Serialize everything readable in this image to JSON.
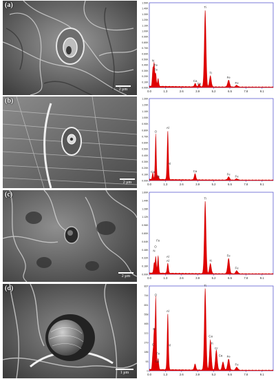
{
  "panels": [
    {
      "label": "(a)",
      "scalebar": "2 μm",
      "chart_data": {
        "type": "line",
        "x_ticks": [
          "0.0",
          "1.3",
          "2.6",
          "3.9",
          "5.2",
          "6.5",
          "7.8",
          "9.1"
        ],
        "y_ticks": [
          "0.00K",
          "0.10K",
          "0.20K",
          "0.30K",
          "0.40K",
          "0.50K",
          "0.60K",
          "0.70K",
          "0.80K",
          "0.90K",
          "1.00K",
          "1.10K",
          "1.20K",
          "1.30K",
          "1.40K",
          "1.50K"
        ],
        "xlim": [
          0,
          10
        ],
        "ylim": [
          0,
          1.5
        ],
        "peaks": [
          {
            "x": 0.28,
            "y": 0.3
          },
          {
            "x": 0.39,
            "y": 0.4
          },
          {
            "x": 0.52,
            "y": 0.22
          },
          {
            "x": 0.71,
            "y": 0.14
          },
          {
            "x": 3.7,
            "y": 0.06
          },
          {
            "x": 4.02,
            "y": 0.05
          },
          {
            "x": 4.51,
            "y": 1.36
          },
          {
            "x": 4.93,
            "y": 0.2
          },
          {
            "x": 6.4,
            "y": 0.12
          },
          {
            "x": 7.06,
            "y": 0.03
          }
        ],
        "labels": [
          {
            "x": 0.3,
            "y": 0.46,
            "text": "N"
          },
          {
            "x": 0.52,
            "y": 0.38,
            "text": "Fe"
          },
          {
            "x": 0.52,
            "y": 0.3,
            "text": "Fe"
          },
          {
            "x": 3.7,
            "y": 0.1,
            "text": "Ca"
          },
          {
            "x": 4.02,
            "y": 0.05,
            "text": "Ca"
          },
          {
            "x": 4.51,
            "y": 1.4,
            "text": "Ti"
          },
          {
            "x": 4.95,
            "y": 0.24,
            "text": "Ti"
          },
          {
            "x": 6.4,
            "y": 0.16,
            "text": "Fe"
          },
          {
            "x": 7.06,
            "y": 0.06,
            "text": "Fe"
          }
        ]
      }
    },
    {
      "label": "(b)",
      "scalebar": "2 μm",
      "chart_data": {
        "type": "line",
        "x_ticks": [
          "0.0",
          "1.3",
          "2.6",
          "3.9",
          "5.2",
          "6.5",
          "7.8",
          "9.1"
        ],
        "y_ticks": [
          "0.00K",
          "0.10K",
          "0.20K",
          "0.30K",
          "0.40K",
          "0.50K",
          "0.60K",
          "0.70K",
          "0.80K",
          "0.90K",
          "1.00K",
          "1.10K",
          "1.20K",
          "1.30K"
        ],
        "xlim": [
          0,
          10
        ],
        "ylim": [
          0,
          1.3
        ],
        "peaks": [
          {
            "x": 0.28,
            "y": 0.1
          },
          {
            "x": 0.52,
            "y": 0.72
          },
          {
            "x": 0.71,
            "y": 0.06
          },
          {
            "x": 1.49,
            "y": 0.78
          },
          {
            "x": 3.69,
            "y": 0.1
          },
          {
            "x": 6.4,
            "y": 0.05
          },
          {
            "x": 7.06,
            "y": 0.02
          }
        ],
        "labels": [
          {
            "x": 0.52,
            "y": 0.76,
            "text": "O"
          },
          {
            "x": 1.49,
            "y": 0.82,
            "text": "Al"
          },
          {
            "x": 0.28,
            "y": 0.12,
            "text": "Ca"
          },
          {
            "x": 0.71,
            "y": 0.05,
            "text": "Fe"
          },
          {
            "x": 1.62,
            "y": 0.25,
            "text": "Al"
          },
          {
            "x": 3.69,
            "y": 0.13,
            "text": "Ca"
          },
          {
            "x": 6.4,
            "y": 0.08,
            "text": "Fe"
          },
          {
            "x": 7.06,
            "y": 0.05,
            "text": "Fe"
          }
        ]
      }
    },
    {
      "label": "(c)",
      "scalebar": "2 μm",
      "chart_data": {
        "type": "line",
        "x_ticks": [
          "0.0",
          "1.3",
          "2.6",
          "3.9",
          "5.2",
          "6.5",
          "7.8",
          "9.1"
        ],
        "y_ticks": [
          "0.00K",
          "0.16K",
          "0.32K",
          "0.48K",
          "0.64K",
          "0.80K",
          "0.96K",
          "1.12K",
          "1.28K",
          "1.44K",
          "1.60K"
        ],
        "xlim": [
          0,
          10
        ],
        "ylim": [
          0,
          1.6
        ],
        "peaks": [
          {
            "x": 0.39,
            "y": 0.2
          },
          {
            "x": 0.52,
            "y": 0.32
          },
          {
            "x": 0.71,
            "y": 0.34
          },
          {
            "x": 1.49,
            "y": 0.2
          },
          {
            "x": 4.51,
            "y": 1.42
          },
          {
            "x": 4.93,
            "y": 0.2
          },
          {
            "x": 6.4,
            "y": 0.3
          },
          {
            "x": 7.06,
            "y": 0.06
          }
        ],
        "labels": [
          {
            "x": 0.71,
            "y": 0.64,
            "text": "Fe"
          },
          {
            "x": 0.5,
            "y": 0.52,
            "text": "O"
          },
          {
            "x": 0.39,
            "y": 0.44,
            "text": "N"
          },
          {
            "x": 1.49,
            "y": 0.32,
            "text": "Al"
          },
          {
            "x": 1.49,
            "y": 0.24,
            "text": "Al"
          },
          {
            "x": 4.51,
            "y": 1.46,
            "text": "Ti"
          },
          {
            "x": 4.95,
            "y": 0.24,
            "text": "Ti"
          },
          {
            "x": 6.4,
            "y": 0.34,
            "text": "Fe"
          },
          {
            "x": 7.06,
            "y": 0.1,
            "text": "Fe"
          }
        ]
      }
    },
    {
      "label": "(d)",
      "scalebar": "1 μm",
      "chart_data": {
        "type": "line",
        "x_ticks": [
          "0.0",
          "1.3",
          "2.6",
          "3.9",
          "5.2",
          "6.5",
          "7.8",
          "9.1"
        ],
        "y_ticks": [
          "0",
          "93",
          "186",
          "279",
          "372",
          "465",
          "558",
          "651",
          "744",
          "837"
        ],
        "xlim": [
          0,
          10
        ],
        "ylim": [
          0,
          837
        ],
        "peaks": [
          {
            "x": 0.28,
            "y": 150
          },
          {
            "x": 0.39,
            "y": 380
          },
          {
            "x": 0.52,
            "y": 720
          },
          {
            "x": 0.71,
            "y": 110
          },
          {
            "x": 1.49,
            "y": 560
          },
          {
            "x": 3.69,
            "y": 60
          },
          {
            "x": 4.51,
            "y": 810
          },
          {
            "x": 4.93,
            "y": 300
          },
          {
            "x": 5.41,
            "y": 200
          },
          {
            "x": 5.95,
            "y": 80
          },
          {
            "x": 6.4,
            "y": 110
          },
          {
            "x": 7.06,
            "y": 30
          }
        ],
        "labels": [
          {
            "x": 0.52,
            "y": 740,
            "text": "O"
          },
          {
            "x": 0.39,
            "y": 400,
            "text": "N"
          },
          {
            "x": 0.3,
            "y": 250,
            "text": "C"
          },
          {
            "x": 0.71,
            "y": 160,
            "text": "Fe"
          },
          {
            "x": 0.62,
            "y": 80,
            "text": "Ca"
          },
          {
            "x": 1.49,
            "y": 580,
            "text": "Al"
          },
          {
            "x": 1.62,
            "y": 240,
            "text": "Al"
          },
          {
            "x": 4.51,
            "y": 830,
            "text": "Ti"
          },
          {
            "x": 4.95,
            "y": 330,
            "text": "Ca"
          },
          {
            "x": 5.05,
            "y": 260,
            "text": "Ti"
          },
          {
            "x": 5.41,
            "y": 210,
            "text": "Cr"
          },
          {
            "x": 5.75,
            "y": 140,
            "text": "Ca"
          },
          {
            "x": 6.4,
            "y": 130,
            "text": "Fe"
          },
          {
            "x": 7.06,
            "y": 50,
            "text": "Fe"
          }
        ]
      }
    }
  ]
}
